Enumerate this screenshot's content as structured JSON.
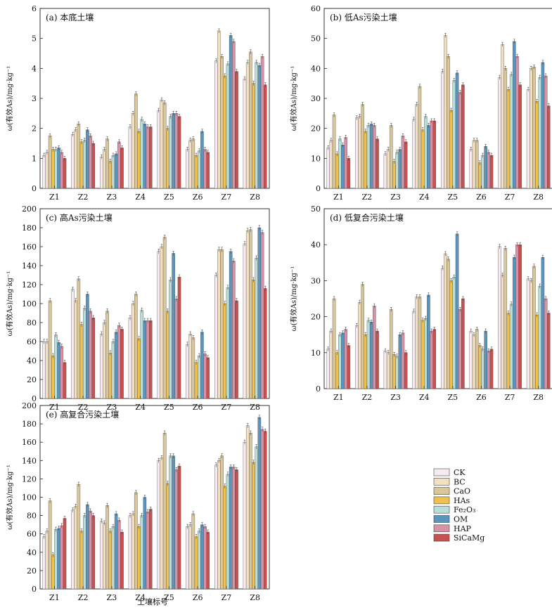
{
  "figure": {
    "xlabel_bottom": "土壤标号",
    "legend": {
      "entries": [
        {
          "label": "CK",
          "color": "#f6ebf1"
        },
        {
          "label": "BC",
          "color": "#f3e0c1"
        },
        {
          "label": "CaO",
          "color": "#dac69b"
        },
        {
          "label": "HAs",
          "color": "#f0c14d"
        },
        {
          "label": "Fe₂O₃",
          "color": "#b9ddd8"
        },
        {
          "label": "OM",
          "color": "#5b95bd"
        },
        {
          "label": "HAP",
          "color": "#d892a6"
        },
        {
          "label": "SiCaMg",
          "color": "#c8504f"
        }
      ]
    }
  },
  "chart_data": [
    {
      "type": "bar",
      "title": "(a) 本底土壤",
      "ylabel": "ω(有效As)/mg·kg⁻¹",
      "ylim": [
        0,
        6
      ],
      "yticks": [
        0,
        1,
        2,
        3,
        4,
        5,
        6
      ],
      "categories": [
        "Z1",
        "Z2",
        "Z3",
        "Z4",
        "Z5",
        "Z6",
        "Z7",
        "Z8"
      ],
      "series": [
        {
          "name": "CK",
          "values": [
            1.1,
            1.8,
            1.05,
            2.05,
            2.6,
            1.3,
            4.25,
            3.65
          ]
        },
        {
          "name": "BC",
          "values": [
            1.2,
            1.95,
            1.3,
            2.5,
            2.95,
            1.6,
            5.25,
            4.2
          ]
        },
        {
          "name": "CaO",
          "values": [
            1.75,
            2.15,
            1.65,
            3.15,
            2.85,
            1.65,
            4.4,
            4.55
          ]
        },
        {
          "name": "HAs",
          "values": [
            1.3,
            1.55,
            0.9,
            1.9,
            2.0,
            1.1,
            3.75,
            3.5
          ]
        },
        {
          "name": "Fe2O3",
          "values": [
            1.3,
            1.6,
            1.1,
            2.3,
            2.4,
            1.25,
            4.15,
            4.2
          ]
        },
        {
          "name": "OM",
          "values": [
            1.35,
            1.95,
            1.15,
            2.15,
            2.5,
            1.9,
            5.1,
            4.1
          ]
        },
        {
          "name": "HAP",
          "values": [
            1.2,
            1.75,
            1.55,
            2.05,
            2.5,
            1.3,
            4.9,
            4.4
          ]
        },
        {
          "name": "SiCaMg",
          "values": [
            1.0,
            1.5,
            1.35,
            2.05,
            2.4,
            1.2,
            3.9,
            3.45
          ]
        }
      ]
    },
    {
      "type": "bar",
      "title": "(b) 低As污染土壤",
      "ylabel": "ω(有效As)/mg·kg⁻¹",
      "ylim": [
        0,
        60
      ],
      "yticks": [
        0,
        10,
        20,
        30,
        40,
        50,
        60
      ],
      "categories": [
        "Z1",
        "Z2",
        "Z3",
        "Z4",
        "Z5",
        "Z6",
        "Z7",
        "Z8"
      ],
      "series": [
        {
          "name": "CK",
          "values": [
            13.5,
            23.5,
            11.5,
            23,
            39,
            13,
            37,
            33
          ]
        },
        {
          "name": "BC",
          "values": [
            16,
            24,
            13,
            28,
            51,
            16,
            48,
            40
          ]
        },
        {
          "name": "CaO",
          "values": [
            24.5,
            28,
            21,
            34,
            44,
            16,
            40,
            40.5
          ]
        },
        {
          "name": "HAs",
          "values": [
            11.5,
            19,
            9,
            19.5,
            26,
            8.5,
            33,
            29
          ]
        },
        {
          "name": "Fe2O3",
          "values": [
            16.5,
            21,
            12,
            24,
            36,
            11,
            38,
            37
          ]
        },
        {
          "name": "OM",
          "values": [
            14.5,
            21.5,
            13,
            21,
            38.5,
            14,
            49,
            42
          ]
        },
        {
          "name": "HAP",
          "values": [
            17,
            21,
            17.5,
            22.5,
            32,
            12,
            44,
            37.5
          ]
        },
        {
          "name": "SiCaMg",
          "values": [
            10,
            16.5,
            15.5,
            22.5,
            34.5,
            11,
            34.5,
            27.5
          ]
        }
      ]
    },
    {
      "type": "bar",
      "title": "(c) 高As污染土壤",
      "ylabel": "ω(有效As)/mg·kg⁻¹",
      "ylim": [
        0,
        200
      ],
      "yticks": [
        0,
        20,
        40,
        60,
        80,
        100,
        120,
        140,
        160,
        180,
        200
      ],
      "categories": [
        "Z1",
        "Z2",
        "Z3",
        "Z4",
        "Z5",
        "Z6",
        "Z7",
        "Z8"
      ],
      "series": [
        {
          "name": "CK",
          "values": [
            60,
            115,
            68,
            85,
            155,
            57,
            130,
            163
          ]
        },
        {
          "name": "BC",
          "values": [
            60,
            103,
            80,
            100,
            160,
            68,
            157,
            177
          ]
        },
        {
          "name": "CaO",
          "values": [
            103,
            126,
            92,
            110,
            170,
            64,
            157,
            178
          ]
        },
        {
          "name": "HAs",
          "values": [
            45,
            78,
            48,
            63,
            92,
            38,
            100,
            125
          ]
        },
        {
          "name": "Fe2O3",
          "values": [
            67,
            95,
            60,
            93,
            125,
            45,
            117,
            148
          ]
        },
        {
          "name": "OM",
          "values": [
            59,
            110,
            70,
            82,
            153,
            70,
            155,
            180
          ]
        },
        {
          "name": "HAP",
          "values": [
            55,
            92,
            77,
            82,
            105,
            47,
            145,
            175
          ]
        },
        {
          "name": "SiCaMg",
          "values": [
            38,
            85,
            73,
            82,
            128,
            43,
            103,
            116
          ]
        }
      ]
    },
    {
      "type": "bar",
      "title": "(d) 低复合污染土壤",
      "ylabel": "ω(有效As)/mg·kg⁻¹",
      "ylim": [
        0,
        50
      ],
      "yticks": [
        0,
        10,
        20,
        30,
        40,
        50
      ],
      "categories": [
        "Z1",
        "Z2",
        "Z3",
        "Z4",
        "Z5",
        "Z6",
        "Z7",
        "Z8"
      ],
      "series": [
        {
          "name": "CK",
          "values": [
            11,
            17.5,
            10.5,
            21.5,
            33.5,
            16,
            39.5,
            30.5
          ]
        },
        {
          "name": "BC",
          "values": [
            16,
            24,
            10,
            25.5,
            37.5,
            15,
            31.5,
            30
          ]
        },
        {
          "name": "CaO",
          "values": [
            25,
            29,
            22,
            25.5,
            36,
            16.5,
            39,
            34
          ]
        },
        {
          "name": "HAs",
          "values": [
            10,
            15,
            9.5,
            19,
            30,
            12,
            21,
            20.5
          ]
        },
        {
          "name": "Fe2O3",
          "values": [
            15,
            19,
            9,
            19.5,
            31,
            11,
            23.5,
            28.5
          ]
        },
        {
          "name": "OM",
          "values": [
            15.5,
            18.5,
            15,
            26,
            43,
            16,
            36.5,
            36.5
          ]
        },
        {
          "name": "HAP",
          "values": [
            16.5,
            23,
            15.5,
            16,
            22,
            10.5,
            40,
            25
          ]
        },
        {
          "name": "SiCaMg",
          "values": [
            12,
            16,
            10,
            16.5,
            25,
            11,
            40,
            21
          ]
        }
      ]
    },
    {
      "type": "bar",
      "title": "(e) 高复合污染土壤",
      "ylabel": "ω(有效As)/mg·kg⁻¹",
      "ylim": [
        0,
        200
      ],
      "yticks": [
        0,
        20,
        40,
        60,
        80,
        100,
        120,
        140,
        160,
        180,
        200
      ],
      "categories": [
        "Z1",
        "Z2",
        "Z3",
        "Z4",
        "Z5",
        "Z6",
        "Z7",
        "Z8"
      ],
      "series": [
        {
          "name": "CK",
          "values": [
            57,
            86,
            74,
            80,
            140,
            68,
            135,
            160
          ]
        },
        {
          "name": "BC",
          "values": [
            63,
            90,
            72,
            82,
            143,
            70,
            140,
            178
          ]
        },
        {
          "name": "CaO",
          "values": [
            96,
            114,
            91,
            105,
            170,
            82,
            145,
            170
          ]
        },
        {
          "name": "HAs",
          "values": [
            37,
            63,
            63,
            68,
            115,
            57,
            112,
            138
          ]
        },
        {
          "name": "Fe2O3",
          "values": [
            65,
            80,
            68,
            80,
            145,
            63,
            125,
            155
          ]
        },
        {
          "name": "OM",
          "values": [
            66,
            92,
            82,
            100,
            145,
            70,
            133,
            187
          ]
        },
        {
          "name": "HAP",
          "values": [
            69,
            85,
            75,
            84,
            130,
            68,
            133,
            174
          ]
        },
        {
          "name": "SiCaMg",
          "values": [
            77,
            80,
            62,
            87,
            134,
            62,
            130,
            172
          ]
        }
      ]
    }
  ]
}
